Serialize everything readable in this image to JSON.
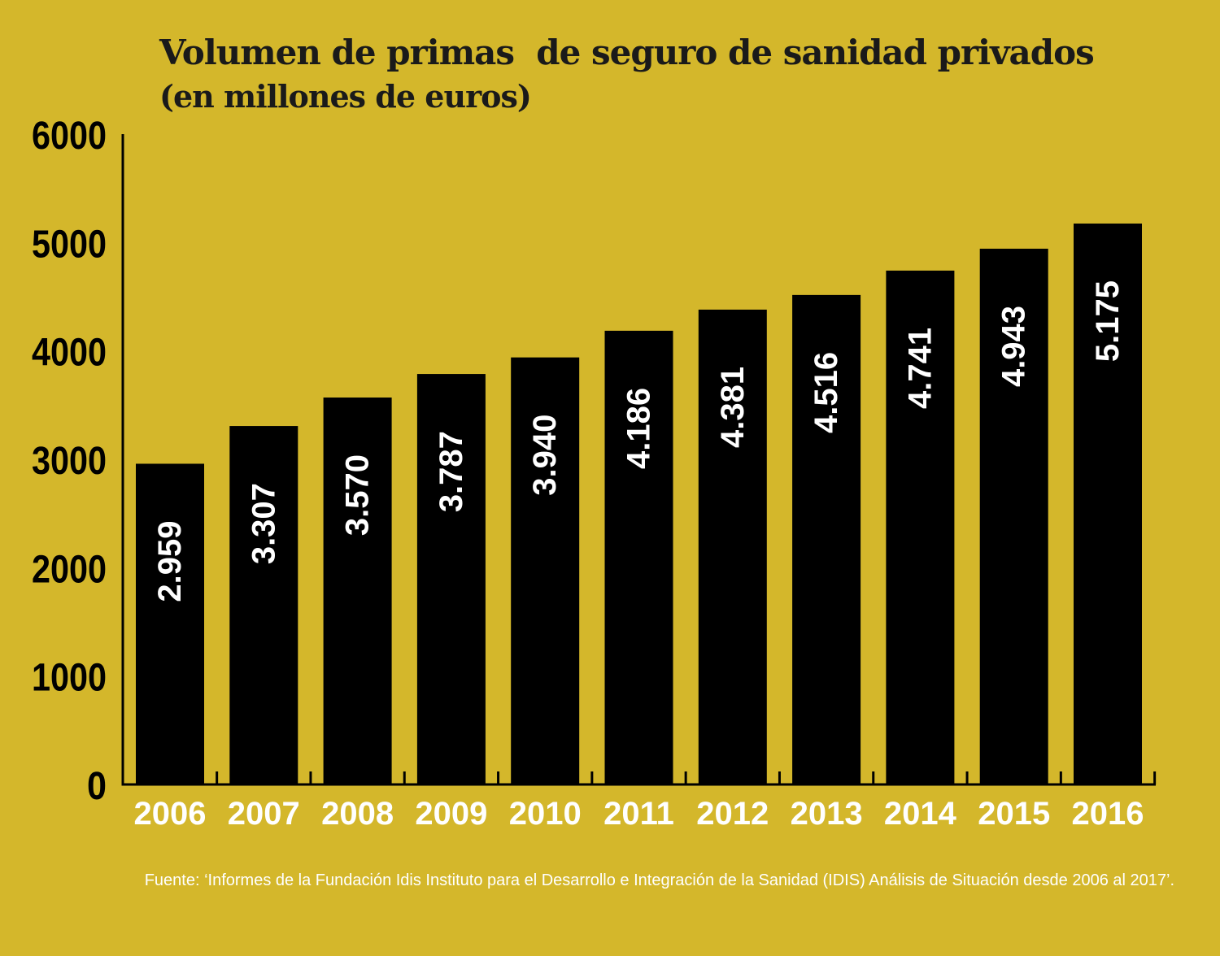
{
  "header": {
    "title": "Volumen de primas  de seguro de sanidad privados",
    "subtitle": "(en millones de euros)"
  },
  "colors": {
    "background": "#d4b72b",
    "bar": "#000000",
    "bar_label": "#ffffff",
    "axis": "#000000",
    "x_tick_label": "#ffffff",
    "y_tick_label": "#000000",
    "title": "#1a1a1a"
  },
  "chart_data": {
    "type": "bar",
    "title": "Volumen de primas  de seguro de sanidad privados",
    "subtitle": "(en millones de euros)",
    "xlabel": "",
    "ylabel": "",
    "categories": [
      "2006",
      "2007",
      "2008",
      "2009",
      "2010",
      "2011",
      "2012",
      "2013",
      "2014",
      "2015",
      "2016"
    ],
    "values": [
      2959,
      3307,
      3570,
      3787,
      3940,
      4186,
      4381,
      4516,
      4741,
      4943,
      5175
    ],
    "value_labels": [
      "2.959",
      "3.307",
      "3.570",
      "3.787",
      "3.940",
      "4.186",
      "4.381",
      "4.516",
      "4.741",
      "4.943",
      "5.175"
    ],
    "yticks": [
      0,
      1000,
      2000,
      3000,
      4000,
      5000,
      6000
    ],
    "ylim": [
      0,
      6000
    ],
    "grid": false,
    "legend": "none",
    "value_label_orientation": "vertical"
  },
  "footer": {
    "source": "Fuente: ‘Informes de la Fundación Idis Instituto para el Desarrollo e Integración de la Sanidad (IDIS) Análisis de Situación desde 2006 al 2017’."
  }
}
